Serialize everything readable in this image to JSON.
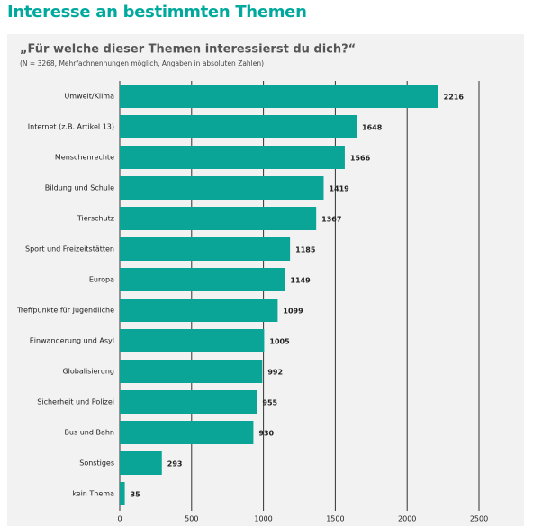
{
  "header": {
    "title": "Interesse an bestimmten Themen"
  },
  "chart_data": {
    "type": "bar",
    "orientation": "horizontal",
    "title": "„Für welche dieser Themen interessierst du dich?“",
    "subtitle": "(N = 3268, Mehrfachnennungen möglich, Angaben in absoluten Zahlen)",
    "categories": [
      "Umwelt/Klima",
      "Internet (z.B. Artikel 13)",
      "Menschenrechte",
      "Bildung und Schule",
      "Tierschutz",
      "Sport und Freizeitstätten",
      "Europa",
      "Treffpunkte für Jugendliche",
      "Einwanderung und Asyl",
      "Globalisierung",
      "Sicherheit und Polizei",
      "Bus und Bahn",
      "Sonstiges",
      "kein Thema"
    ],
    "values": [
      2216,
      1648,
      1566,
      1419,
      1367,
      1185,
      1149,
      1099,
      1005,
      992,
      955,
      930,
      293,
      35
    ],
    "color": "#0aa596",
    "xlim": [
      0,
      2500
    ],
    "xticks": [
      0,
      500,
      1000,
      1500,
      2000,
      2500
    ],
    "grid": true
  }
}
